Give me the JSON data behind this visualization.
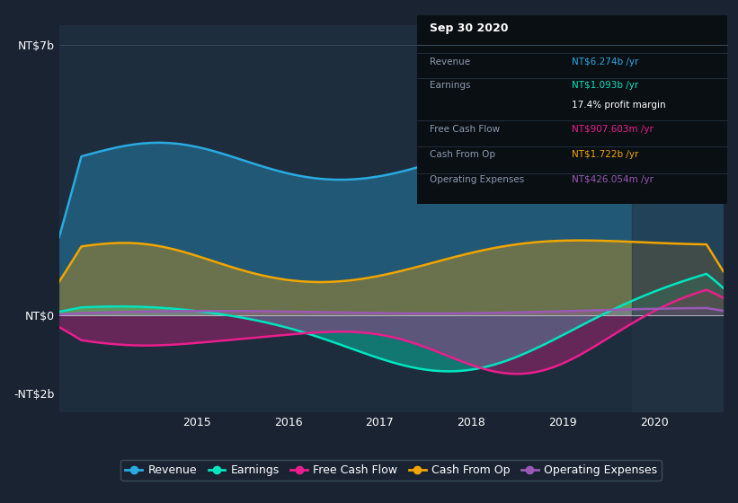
{
  "bg_color": "#1a2332",
  "plot_bg_color": "#1e2d3d",
  "highlight_color": "#243447",
  "title": "Sep 30 2020",
  "ylabel_top": "NT$7b",
  "ylabel_bottom": "-NT$2b",
  "ylabel_zero": "NT$0",
  "x_ticks": [
    "2015",
    "2016",
    "2017",
    "2018",
    "2019",
    "2020"
  ],
  "colors": {
    "revenue": "#29abe2",
    "earnings": "#00e5c0",
    "free_cash_flow": "#e91e8c",
    "cash_from_op": "#f0a500",
    "operating_expenses": "#9b59b6"
  },
  "legend": [
    {
      "label": "Revenue",
      "color": "#29abe2"
    },
    {
      "label": "Earnings",
      "color": "#00e5c0"
    },
    {
      "label": "Free Cash Flow",
      "color": "#e91e8c"
    },
    {
      "label": "Cash From Op",
      "color": "#f0a500"
    },
    {
      "label": "Operating Expenses",
      "color": "#9b59b6"
    }
  ],
  "info_box": {
    "title": "Sep 30 2020",
    "rows": [
      {
        "label": "Revenue",
        "value": "NT$6.274b /yr",
        "color": "#29abe2"
      },
      {
        "label": "Earnings",
        "value": "NT$1.093b /yr",
        "color": "#00e5c0"
      },
      {
        "label": "",
        "value": "17.4% profit margin",
        "color": "#ffffff"
      },
      {
        "label": "Free Cash Flow",
        "value": "NT$907.603m /yr",
        "color": "#e91e8c"
      },
      {
        "label": "Cash From Op",
        "value": "NT$1.722b /yr",
        "color": "#f0a500"
      },
      {
        "label": "Operating Expenses",
        "value": "NT$426.054m /yr",
        "color": "#9b59b6"
      }
    ]
  }
}
